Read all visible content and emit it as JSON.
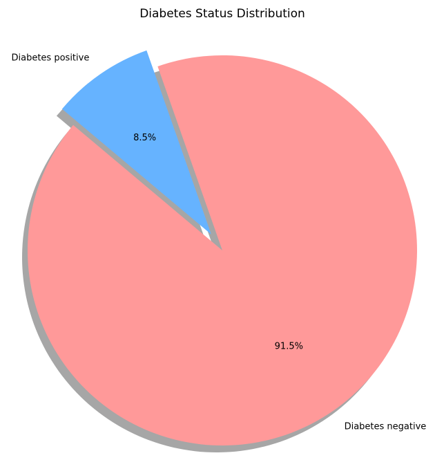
{
  "chart_data": {
    "type": "pie",
    "title": "Diabetes Status Distribution",
    "slices": [
      {
        "label": "Diabetes negative",
        "value": 91.5,
        "pct_label": "91.5%",
        "color": "#ff9999",
        "exploded": false
      },
      {
        "label": "Diabetes positive",
        "value": 8.5,
        "pct_label": "8.5%",
        "color": "#66b3ff",
        "exploded": true
      }
    ],
    "start_angle_deg": 140,
    "shadow": true,
    "legend": "none"
  }
}
